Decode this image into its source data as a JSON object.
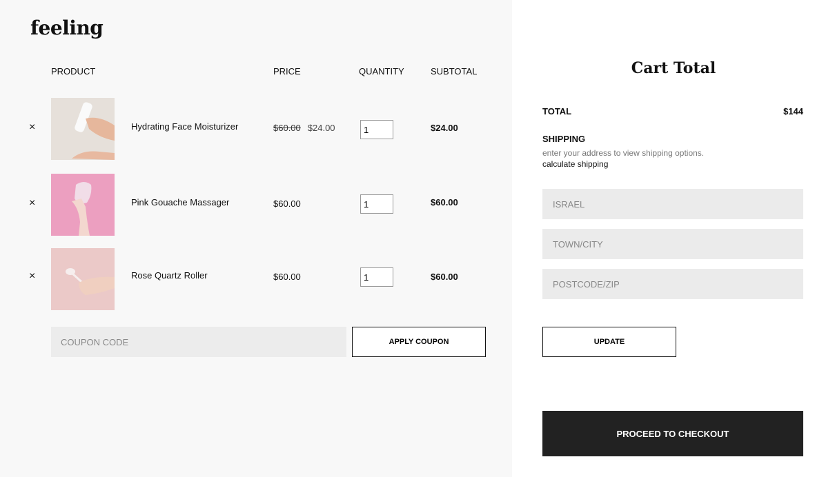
{
  "brand": {
    "logo": "feeling"
  },
  "table": {
    "headers": [
      "PRODUCT",
      "PRICE",
      "QUANTITY",
      "SUBTOTAL"
    ]
  },
  "items": [
    {
      "name": "Hydrating Face Moisturizer",
      "old_price": "$60.00",
      "price": "$24.00",
      "qty": "1",
      "subtotal": "$24.00",
      "image_bg": "#e6e0da"
    },
    {
      "name": "Pink Gouache Massager",
      "price": "$60.00",
      "qty": "1",
      "subtotal": "$60.00",
      "image_bg": "#ec9fc0"
    },
    {
      "name": "Rose Quartz Roller",
      "price": "$60.00",
      "qty": "1",
      "subtotal": "$60.00",
      "image_bg": "#ebc9c8"
    }
  ],
  "coupon": {
    "placeholder": "COUPON CODE",
    "apply_label": "APPLY COUPON"
  },
  "cart": {
    "title": "Cart Total",
    "total_label": "TOTAL",
    "total_value": "$144",
    "shipping_label": "SHIPPING",
    "shipping_note": "enter your address to view shipping options.",
    "calc_link": "calculate shipping",
    "country_placeholder": "ISRAEL",
    "city_placeholder": "TOWN/CITY",
    "zip_placeholder": "POSTCODE/ZIP",
    "update_label": "UPDATE",
    "checkout_label": "PROCEED TO CHECKOUT"
  },
  "colors": {
    "left_bg": "#f8f8f8",
    "checkout_bg": "#222222"
  }
}
